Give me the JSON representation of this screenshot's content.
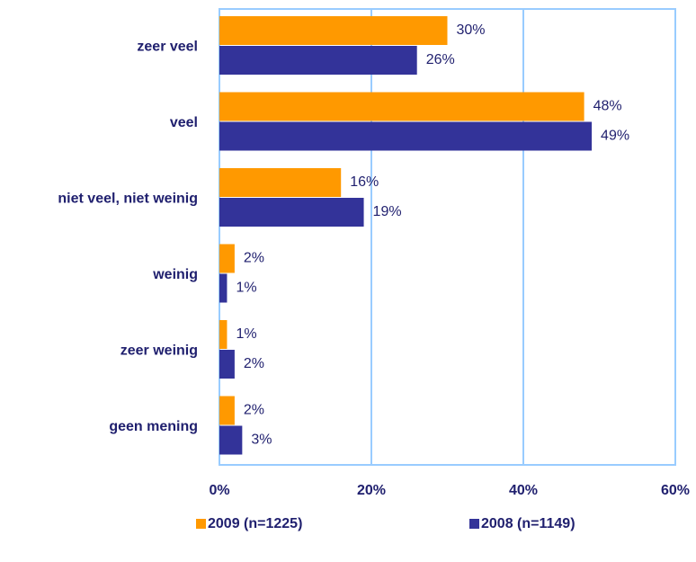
{
  "chart_data": {
    "type": "hbar",
    "categories": [
      "zeer veel",
      "veel",
      "niet veel, niet weinig",
      "weinig",
      "zeer weinig",
      "geen mening"
    ],
    "series": [
      {
        "name": "2009 (n=1225)",
        "color": "#ff9900",
        "values": [
          30,
          48,
          16,
          2,
          1,
          2
        ],
        "value_labels": [
          "30%",
          "48%",
          "16%",
          "2%",
          "1%",
          "2%"
        ]
      },
      {
        "name": "2008 (n=1149)",
        "color": "#333399",
        "values": [
          26,
          49,
          19,
          1,
          2,
          3
        ],
        "value_labels": [
          "26%",
          "49%",
          "19%",
          "1%",
          "2%",
          "3%"
        ]
      }
    ],
    "xlim": [
      0,
      60
    ],
    "xticks": [
      {
        "value": 0,
        "label": "0%"
      },
      {
        "value": 20,
        "label": "20%"
      },
      {
        "value": 40,
        "label": "40%"
      },
      {
        "value": 60,
        "label": "60%"
      }
    ],
    "grid": true,
    "legend": "bottom"
  }
}
